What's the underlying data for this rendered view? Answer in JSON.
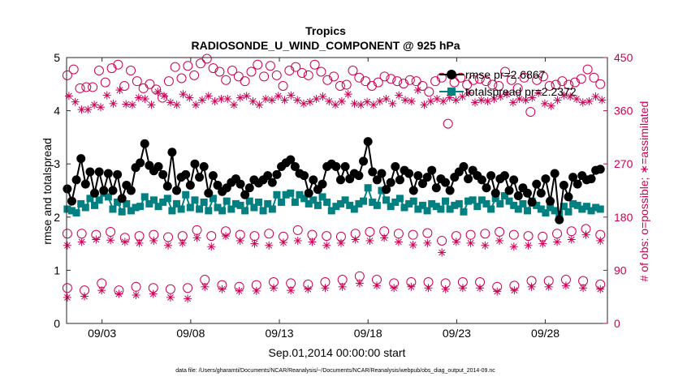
{
  "chart_data": {
    "type": "line",
    "title": "Tropics",
    "subtitle": "RADIOSONDE_U_WIND_COMPONENT @ 925 hPa",
    "xlabel": "Sep.01,2014 00:00:00 start",
    "ylabel_left": "rmse and totalspread",
    "ylabel_right": "# of obs: o=possible; ∗=assimilated",
    "footnote": "data file: /Users/gharamti/Documents/NCAR/Reanalysis/~/Documents/NCAR/Reanalysis/webpub/obs_diag_output_2014-09.nc",
    "xlim": [
      0,
      30.5
    ],
    "ylim_left": [
      0,
      5
    ],
    "ylim_right": [
      0,
      450
    ],
    "x_ticks": [
      2,
      7,
      12,
      17,
      22,
      27
    ],
    "x_tick_labels": [
      "09/03",
      "09/08",
      "09/13",
      "09/18",
      "09/23",
      "09/28"
    ],
    "y_left_ticks": [
      "0",
      "1",
      "2",
      "3",
      "4",
      "5"
    ],
    "y_right_ticks": [
      "0",
      "90",
      "180",
      "270",
      "360",
      "450"
    ],
    "legend": {
      "placement": "top-right",
      "entries": [
        "rmse pr=2.6867",
        "totalspread pr=2.2372"
      ]
    },
    "colors": {
      "rmse": "#000000",
      "spread": "#008080",
      "obs": "#cc0055"
    },
    "series": [
      {
        "name": "rmse pr=2.6867",
        "axis": "left",
        "values": [
          2.53,
          2.3,
          2.7,
          3.1,
          2.62,
          2.85,
          2.45,
          2.85,
          2.5,
          2.82,
          2.5,
          2.8,
          2.35,
          2.6,
          2.5,
          2.93,
          3.02,
          3.38,
          2.97,
          2.87,
          2.95,
          2.8,
          2.58,
          3.22,
          2.5,
          2.75,
          2.8,
          2.6,
          3.0,
          2.75,
          2.95,
          2.45,
          2.78,
          2.6,
          2.48,
          2.55,
          2.65,
          2.72,
          2.62,
          2.42,
          2.55,
          2.7,
          2.64,
          2.7,
          2.78,
          2.65,
          2.8,
          2.95,
          3.02,
          3.08,
          2.95,
          2.82,
          2.78,
          2.45,
          2.7,
          2.52,
          2.62,
          2.95,
          3.0,
          2.95,
          2.7,
          2.95,
          2.72,
          2.82,
          2.78,
          3.05,
          3.42,
          2.85,
          2.7,
          2.82,
          2.52,
          2.65,
          2.95,
          2.7,
          2.88,
          2.82,
          2.5,
          2.78,
          2.63,
          2.75,
          2.88,
          2.55,
          2.72,
          2.65,
          2.5,
          2.75,
          2.85,
          2.95,
          2.72,
          2.88,
          2.78,
          2.7,
          2.55,
          2.78,
          2.45,
          2.72,
          2.78,
          2.5,
          2.7,
          2.4,
          2.55,
          2.45,
          2.28,
          2.62,
          2.45,
          2.72,
          2.3,
          2.82,
          1.95,
          2.6,
          2.38,
          2.75,
          2.62,
          2.78,
          2.7,
          2.72,
          2.88,
          2.9
        ]
      },
      {
        "name": "totalspread pr=2.2372",
        "axis": "left",
        "values": [
          2.15,
          2.12,
          2.08,
          2.25,
          2.18,
          2.35,
          2.22,
          2.32,
          2.45,
          2.38,
          2.15,
          2.28,
          2.1,
          2.25,
          2.12,
          2.18,
          2.2,
          2.38,
          2.25,
          2.32,
          2.2,
          2.28,
          2.35,
          2.12,
          2.25,
          2.15,
          2.42,
          2.18,
          2.32,
          2.15,
          2.28,
          2.12,
          2.35,
          2.18,
          2.12,
          2.3,
          2.15,
          2.25,
          2.22,
          2.12,
          2.3,
          2.18,
          2.28,
          2.12,
          2.25,
          2.15,
          2.42,
          2.28,
          2.42,
          2.45,
          2.28,
          2.42,
          2.35,
          2.25,
          2.32,
          2.22,
          2.38,
          2.28,
          2.12,
          2.2,
          2.25,
          2.32,
          2.22,
          2.15,
          2.25,
          2.3,
          2.55,
          2.28,
          2.22,
          2.5,
          2.32,
          2.2,
          2.28,
          2.35,
          2.18,
          2.25,
          2.3,
          2.15,
          2.22,
          2.12,
          2.25,
          2.2,
          2.15,
          2.3,
          2.15,
          2.22,
          2.25,
          2.1,
          2.3,
          2.32,
          2.2,
          2.32,
          2.25,
          2.15,
          2.35,
          2.25,
          2.4,
          2.3,
          2.22,
          2.15,
          2.25,
          2.12,
          2.3,
          2.22,
          2.15,
          2.08,
          2.18,
          2.12,
          2.05,
          2.2,
          2.1,
          2.25,
          2.22,
          2.15,
          2.2,
          2.12,
          2.18,
          2.15
        ]
      },
      {
        "name": "possible obs (o)",
        "axis": "right",
        "groups": [
          {
            "values": [
              420,
              430,
              398,
              400,
              400,
              428,
              408,
              432,
              438,
              402,
              428,
              410,
              398,
              405,
              396,
              382,
              410,
              434,
              415,
              436,
              420,
              440,
              448,
              432,
              426,
              412,
              428,
              418,
              410,
              426,
              438,
              418,
              436,
              420,
              402,
              428,
              434,
              424,
              420,
              438,
              426,
              412,
              418,
              402,
              404,
              428,
              416,
              410,
              402,
              408,
              418,
              414,
              410,
              406,
              412,
              410,
              402,
              392,
              410,
              416,
              338,
              408,
              416,
              404,
              412,
              414,
              410,
              404,
              402,
              426,
              412,
              398,
              416,
              358,
              412,
              418,
              402,
              404,
              410,
              404,
              408,
              414,
              430,
              416,
              405
            ]
          },
          {
            "values": [
              152,
              152,
              150,
              155,
              145,
              148,
              150,
              146,
              148,
              158,
              148,
              156,
              150,
              148,
              152,
              147,
              158,
              150,
              148,
              147,
              152,
              155,
              156,
              152,
              150,
              153,
              140,
              148,
              150,
              152,
              155,
              150,
              148,
              147,
              152,
              156,
              160,
              150
            ]
          },
          {
            "values": [
              60,
              56,
              68,
              56,
              62,
              60,
              58,
              60,
              74,
              65,
              62,
              65,
              70,
              68,
              66,
              70,
              74,
              80,
              74,
              68,
              70,
              70,
              68,
              70,
              70,
              62,
              64,
              72,
              72,
              74,
              72,
              66
            ]
          }
        ]
      },
      {
        "name": "assimilated obs (∗)",
        "axis": "right",
        "groups": [
          {
            "values": [
              385,
              375,
              362,
              362,
              370,
              366,
              386,
              372,
              395,
              371,
              370,
              382,
              380,
              370,
              392,
              385,
              374,
              370,
              388,
              382,
              370,
              378,
              385,
              376,
              380,
              380,
              370,
              382,
              385,
              376,
              370,
              380,
              378,
              385,
              378,
              386,
              378,
              372,
              375,
              380,
              384,
              376,
              370,
              376,
              388,
              372,
              370,
              375,
              370,
              376,
              380,
              372,
              386,
              378,
              376,
              395,
              370,
              376,
              380,
              376,
              382,
              378,
              384,
              390,
              374,
              378,
              376,
              380,
              384,
              388,
              374,
              380,
              378,
              382,
              390,
              372,
              368,
              378,
              386,
              384,
              380,
              374,
              376,
              384,
              378
            ]
          },
          {
            "values": [
              132,
              138,
              142,
              141,
              138,
              136,
              140,
              132,
              136,
              145,
              130,
              148,
              140,
              135,
              132,
              137,
              140,
              138,
              132,
              136,
              142,
              140,
              145,
              138,
              133,
              136,
              120,
              138,
              136,
              132,
              140,
              130,
              132,
              135,
              138,
              142,
              150,
              140
            ]
          },
          {
            "values": [
              44,
              46,
              56,
              50,
              48,
              50,
              44,
              42,
              62,
              58,
              55,
              55,
              60,
              56,
              58,
              60,
              62,
              68,
              64,
              60,
              62,
              60,
              58,
              60,
              60,
              54,
              56,
              62,
              62,
              64,
              60,
              58
            ]
          }
        ]
      }
    ]
  }
}
